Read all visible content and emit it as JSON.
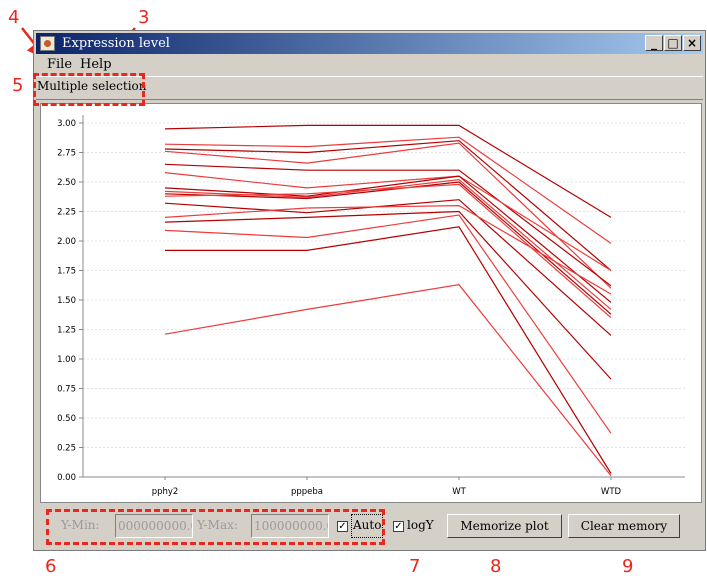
{
  "annotations": [
    {
      "id": "4",
      "label": "4"
    },
    {
      "id": "3",
      "label": "3"
    },
    {
      "id": "5",
      "label": "5"
    },
    {
      "id": "6",
      "label": "6"
    },
    {
      "id": "7",
      "label": "7"
    },
    {
      "id": "8",
      "label": "8"
    },
    {
      "id": "9",
      "label": "9"
    }
  ],
  "window": {
    "title": "Expression level",
    "minimize": "_",
    "maximize": "□",
    "close": "×"
  },
  "menu": {
    "file": "File",
    "help": "Help"
  },
  "toolbar": {
    "multiple_selection": "Multiple selection"
  },
  "controls": {
    "ymin_label": "Y-Min:",
    "ymin_value": "000000000.0",
    "ymax_label": "Y-Max:",
    "ymax_value": "100000000.0",
    "auto_label": "Auto",
    "auto_checked": true,
    "logy_label": "logY",
    "logy_checked": true,
    "memorize_label": "Memorize plot",
    "clear_label": "Clear memory"
  },
  "colors": {
    "line_dark": "#b40000",
    "line_light": "#ee3b3b",
    "annotation": "#e8281e"
  },
  "chart_data": {
    "type": "line",
    "categories": [
      "pphy2",
      "pppeba",
      "WT",
      "WTD"
    ],
    "ylim": [
      0,
      3
    ],
    "yticks": [
      "3.00",
      "2.75",
      "2.50",
      "2.25",
      "2.00",
      "1.75",
      "1.50",
      "1.25",
      "1.00",
      "0.75",
      "0.50",
      "0.25",
      "0.00"
    ],
    "grid": true,
    "series": [
      {
        "values": [
          2.95,
          2.98,
          2.98,
          2.2
        ]
      },
      {
        "values": [
          2.82,
          2.8,
          2.88,
          1.98
        ]
      },
      {
        "values": [
          2.78,
          2.75,
          2.85,
          1.75
        ]
      },
      {
        "values": [
          2.76,
          2.66,
          2.83,
          1.6
        ]
      },
      {
        "values": [
          2.65,
          2.6,
          2.6,
          1.62
        ]
      },
      {
        "values": [
          2.58,
          2.45,
          2.55,
          1.75
        ]
      },
      {
        "values": [
          2.45,
          2.38,
          2.55,
          1.48
        ]
      },
      {
        "values": [
          2.42,
          2.37,
          2.52,
          1.42
        ]
      },
      {
        "values": [
          2.4,
          2.36,
          2.5,
          1.38
        ]
      },
      {
        "values": [
          2.38,
          2.4,
          2.48,
          1.35
        ]
      },
      {
        "values": [
          2.32,
          2.24,
          2.35,
          1.2
        ]
      },
      {
        "values": [
          2.2,
          2.28,
          2.3,
          1.55
        ]
      },
      {
        "values": [
          2.16,
          2.2,
          2.25,
          0.83
        ]
      },
      {
        "values": [
          2.09,
          2.03,
          2.22,
          0.37
        ]
      },
      {
        "values": [
          1.92,
          1.92,
          2.12,
          0.03
        ]
      },
      {
        "values": [
          1.21,
          1.42,
          1.63,
          0.01
        ]
      }
    ]
  }
}
